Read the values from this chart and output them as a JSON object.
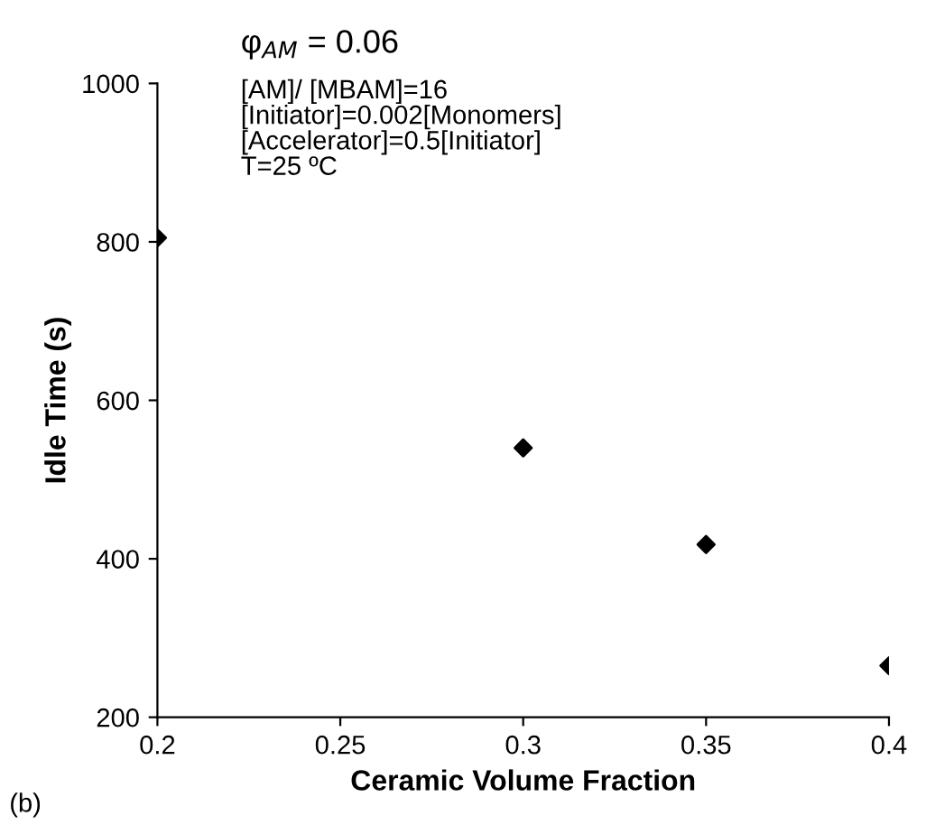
{
  "chart_data": {
    "type": "scatter",
    "xlabel": "Ceramic Volume Fraction",
    "ylabel": "Idle Time (s)",
    "x": [
      0.2,
      0.3,
      0.35,
      0.4
    ],
    "series": [
      {
        "color": "#000000",
        "values": [
          805,
          540,
          418,
          265
        ]
      }
    ],
    "marker": "diamond",
    "xlim": [
      0.2,
      0.4
    ],
    "ylim": [
      200,
      1000
    ],
    "xticks": [
      0.2,
      0.25,
      0.3,
      0.35,
      0.4
    ],
    "yticks": [
      200,
      400,
      600,
      800,
      1000
    ],
    "annotations": [
      "φ$_{AM}$ = 0.06",
      "[AM]/ [MBAM]=16\n[Initiator]=0.002[Monomers]\n[Accelerator]=0.5[Initiator]\nT=25 ºC",
      "(b)"
    ]
  }
}
